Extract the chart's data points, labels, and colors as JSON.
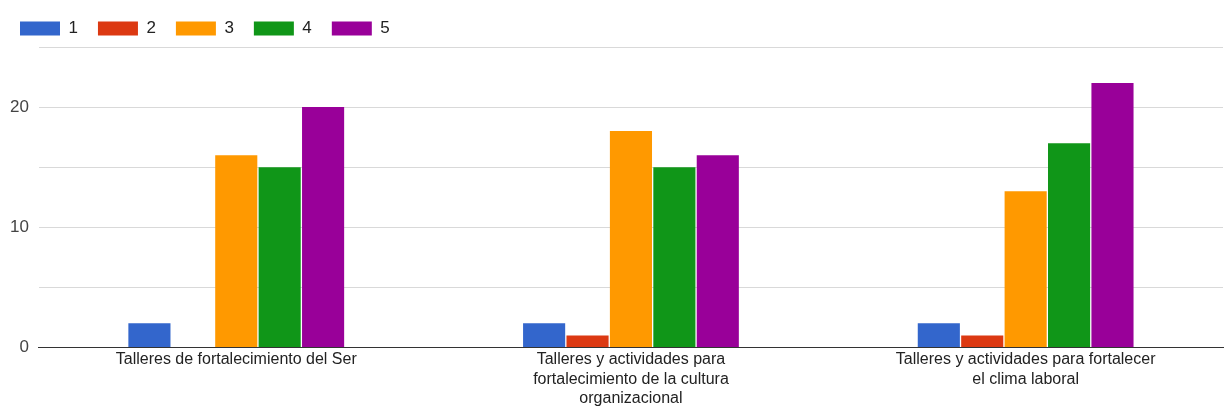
{
  "chart_data": {
    "type": "bar",
    "categories": [
      "Talleres de fortalecimiento del Ser",
      "Talleres y actividades para fortalecimiento de la cultura organizacional",
      "Talleres y actividades para fortalecer el clima laboral"
    ],
    "series": [
      {
        "name": "1",
        "color": "#3366cc",
        "values": [
          2,
          2,
          2
        ]
      },
      {
        "name": "2",
        "color": "#dc3912",
        "values": [
          0,
          1,
          1
        ]
      },
      {
        "name": "3",
        "color": "#ff9900",
        "values": [
          16,
          18,
          13
        ]
      },
      {
        "name": "4",
        "color": "#109618",
        "values": [
          15,
          15,
          17
        ]
      },
      {
        "name": "5",
        "color": "#990099",
        "values": [
          20,
          16,
          22
        ]
      }
    ],
    "ylim": [
      0,
      25
    ],
    "yticks": [
      0,
      {
        "value": 5,
        "label": null
      },
      10,
      {
        "value": 15,
        "label": null
      },
      20,
      {
        "value": 25,
        "label": null
      }
    ],
    "grid": "y",
    "legend": "top left"
  }
}
